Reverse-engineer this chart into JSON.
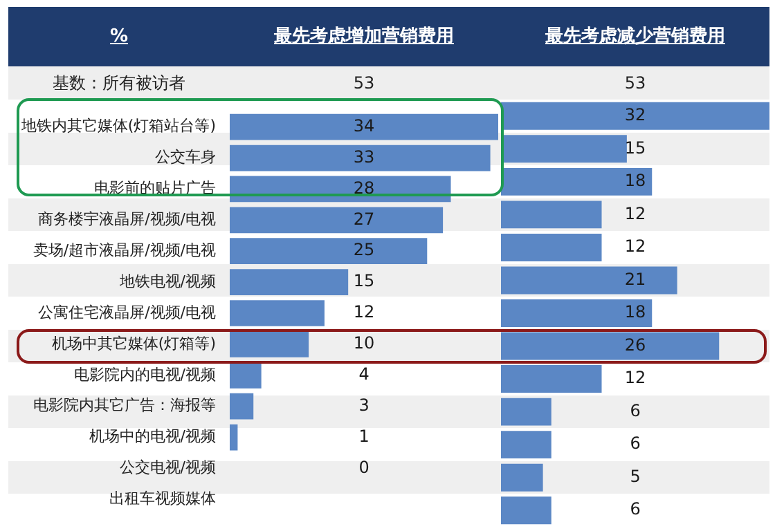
{
  "chart_data": [
    {
      "type": "bar",
      "orientation": "horizontal",
      "title": "最先考虑增加营销费用",
      "ylabel": "%",
      "categories": [
        "地铁内其它媒体(灯箱站台等)",
        "公交车身",
        "电影前的贴片广告",
        "商务楼宇液晶屏/视频/电视",
        "卖场/超市液晶屏/视频/电视",
        "地铁电视/视频",
        "公寓住宅液晶屏/视频/电视",
        "机场中其它媒体(灯箱等)",
        "电影院内的电视/视频",
        "电影院内其它广告：海报等",
        "机场中的电视/视频",
        "公交电视/视频",
        "出租车视频媒体"
      ],
      "values": [
        34,
        33,
        28,
        27,
        25,
        15,
        12,
        10,
        4,
        3,
        1,
        0,
        null
      ],
      "color": "#5b87c5",
      "xlim": [
        0,
        34
      ],
      "data_labels": true,
      "tick_labels": "y",
      "annotations": [
        "基数：所有被访者",
        "53"
      ]
    },
    {
      "type": "bar",
      "orientation": "horizontal",
      "title": "最先考虑减少营销费用",
      "values": [
        32,
        15,
        18,
        12,
        12,
        21,
        18,
        26,
        12,
        6,
        6,
        5,
        6
      ],
      "color": "#5b87c5",
      "xlim": [
        0,
        32
      ],
      "data_labels": true,
      "tick_labels": false,
      "annotations": [
        "53"
      ]
    }
  ]
}
